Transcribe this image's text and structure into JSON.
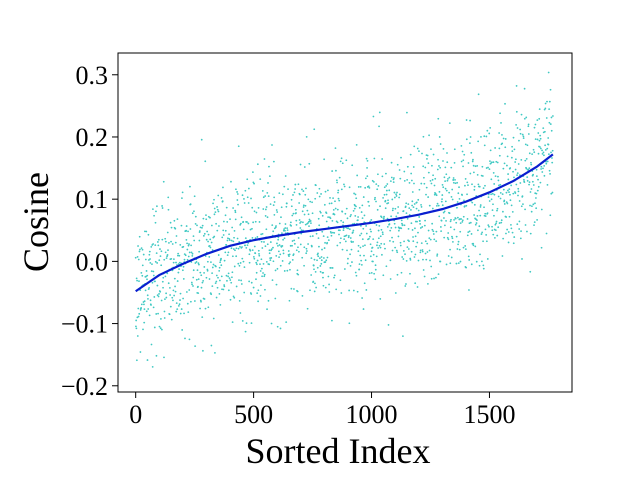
{
  "chart_data": {
    "type": "scatter",
    "title": "",
    "xlabel": "Sorted Index",
    "ylabel": "Cosine",
    "xlim": [
      -75,
      1850
    ],
    "ylim": [
      -0.21,
      0.335
    ],
    "x_ticks": [
      0,
      500,
      1000,
      1500
    ],
    "x_tick_labels": [
      "0",
      "500",
      "1000",
      "1500"
    ],
    "y_ticks": [
      -0.2,
      -0.1,
      0.0,
      0.1,
      0.2,
      0.3
    ],
    "y_tick_labels": [
      "−0.2",
      "−0.1",
      "0.0",
      "0.1",
      "0.2",
      "0.3"
    ],
    "grid": false,
    "legend": "none",
    "colors": {
      "points": "#40c9c3",
      "trend": "#0a1ecf"
    },
    "series": [
      {
        "type": "scatter",
        "point_count": 1770,
        "x_range": [
          0,
          1769
        ],
        "y_min": -0.19,
        "y_max": 0.31,
        "note_values": "dense cloud of ~1770 points around the trend line, spread roughly +/-0.1"
      },
      {
        "type": "line",
        "x": [
          0,
          100,
          200,
          300,
          400,
          500,
          600,
          700,
          800,
          900,
          1000,
          1100,
          1200,
          1300,
          1400,
          1500,
          1600,
          1700,
          1769
        ],
        "y": [
          -0.048,
          -0.022,
          -0.004,
          0.012,
          0.025,
          0.034,
          0.041,
          0.047,
          0.052,
          0.057,
          0.062,
          0.068,
          0.075,
          0.084,
          0.096,
          0.111,
          0.129,
          0.152,
          0.172
        ]
      }
    ]
  }
}
